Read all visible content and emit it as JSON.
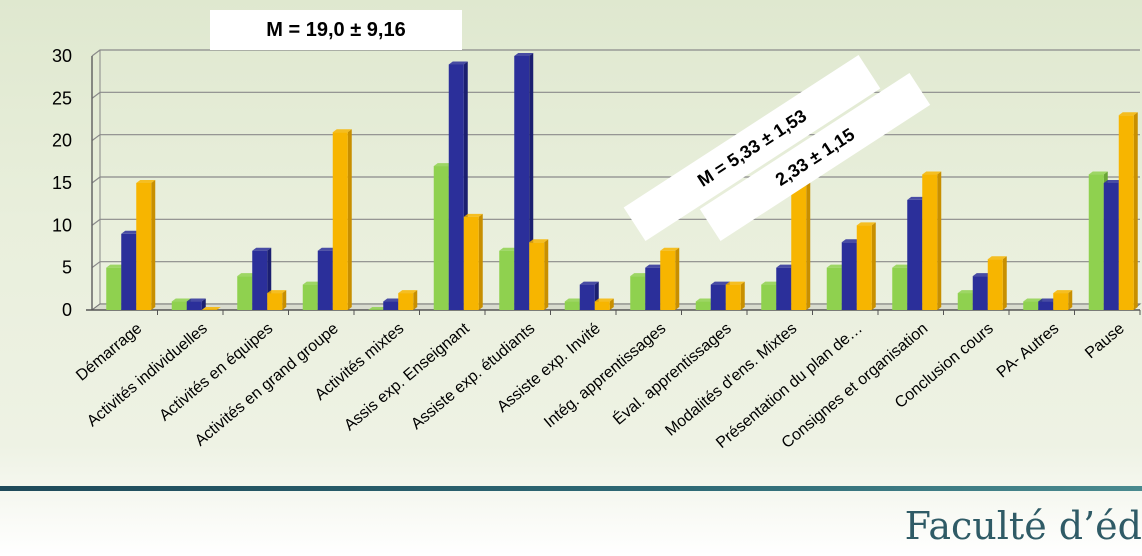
{
  "callouts": [
    {
      "text": "M = 19,0 ± 9,16"
    },
    {
      "text": "M = 5,33 ± 1,53"
    },
    {
      "text": "2,33 ± 1,15"
    }
  ],
  "footer": {
    "text": "Faculté d’éd"
  },
  "colors": {
    "green": "#8fd14f",
    "blue": "#2b2f9a",
    "orange": "#f7b500"
  },
  "chart_data": {
    "type": "bar",
    "title": "",
    "xlabel": "",
    "ylabel": "",
    "ylim": [
      0,
      30
    ],
    "yticks": [
      0,
      5,
      10,
      15,
      20,
      25,
      30
    ],
    "grid": true,
    "categories": [
      "Démarrage",
      "Activités individuelles",
      "Activités en équipes",
      "Activités en grand groupe",
      "Activités mixtes",
      "Assis exp. Enseignant",
      "Assiste exp. étudiants",
      "Assiste exp. Invité",
      "Intég. apprentissages",
      "Éval. apprentissages",
      "Modalités d'ens. Mixtes",
      "Présentation du plan de…",
      "Consignes et organisation",
      "Conclusion cours",
      "PA- Autres",
      "Pause"
    ],
    "series": [
      {
        "values": [
          5,
          1,
          4,
          3,
          0,
          17,
          7,
          1,
          4,
          1,
          3,
          5,
          5,
          2,
          1,
          16
        ]
      },
      {
        "values": [
          9,
          1,
          7,
          7,
          1,
          29,
          30,
          3,
          5,
          3,
          5,
          8,
          13,
          4,
          1,
          15
        ]
      },
      {
        "values": [
          15,
          0,
          2,
          21,
          2,
          11,
          8,
          1,
          7,
          3,
          16,
          10,
          16,
          6,
          2,
          23
        ]
      }
    ]
  }
}
